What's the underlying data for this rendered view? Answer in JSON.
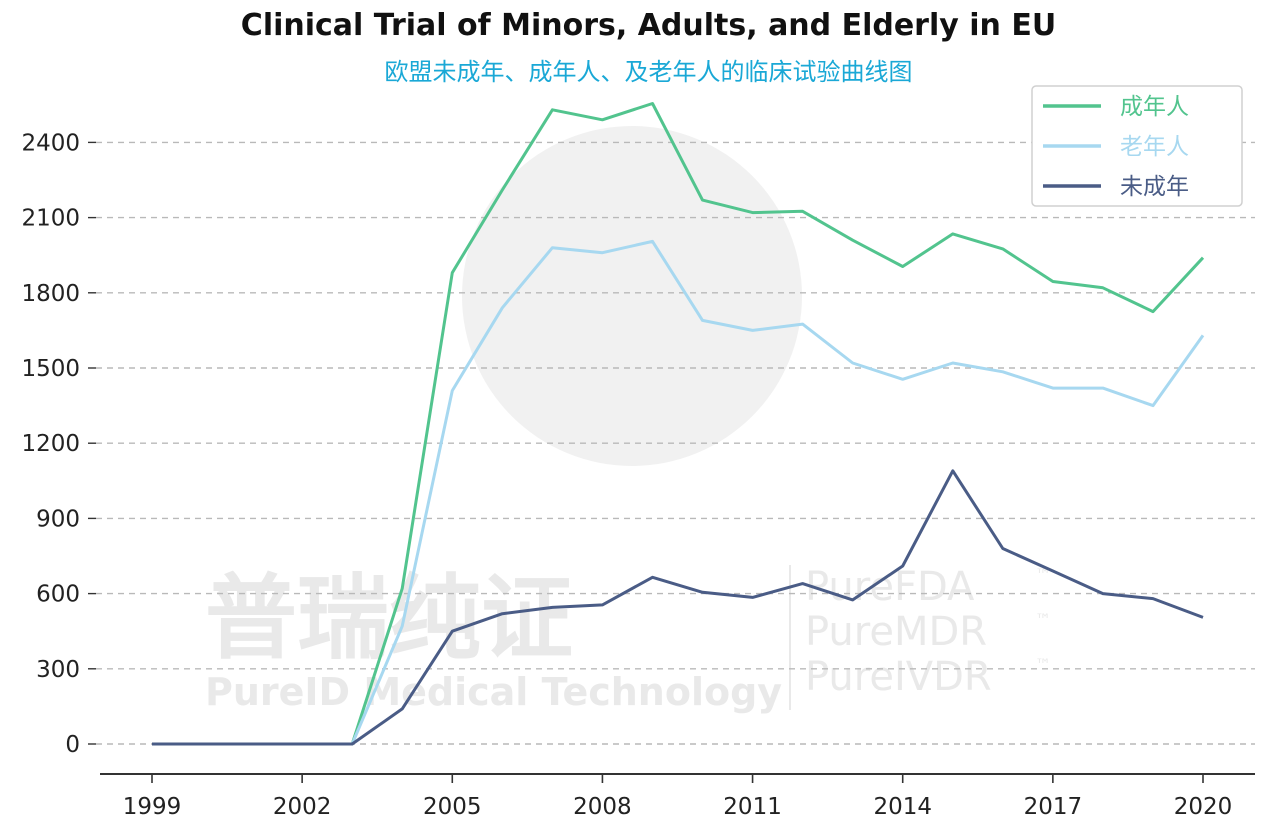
{
  "chart_data": {
    "type": "line",
    "title": "Clinical Trial of Minors, Adults, and Elderly in EU",
    "subtitle": "欧盟未成年、成年人、及老年人的临床试验曲线图",
    "xlabel": "",
    "ylabel": "",
    "x": [
      1999,
      2000,
      2001,
      2002,
      2003,
      2004,
      2005,
      2006,
      2007,
      2008,
      2009,
      2010,
      2011,
      2012,
      2013,
      2014,
      2015,
      2016,
      2017,
      2018,
      2019,
      2020
    ],
    "xlim": [
      1999,
      2020
    ],
    "ylim": [
      0,
      2550
    ],
    "xticks": [
      "1999",
      "2002",
      "2005",
      "2008",
      "2011",
      "2014",
      "2017",
      "2020"
    ],
    "yticks": [
      "0",
      "300",
      "600",
      "900",
      "1200",
      "1500",
      "1800",
      "2100",
      "2400"
    ],
    "grid": "horizontal dashed",
    "legend_position": "top-right",
    "series": [
      {
        "name": "成年人",
        "color": "#52c48e",
        "values": [
          0,
          0,
          0,
          0,
          0,
          620,
          1880,
          2210,
          2530,
          2490,
          2555,
          2170,
          2120,
          2125,
          2010,
          1905,
          2035,
          1975,
          1845,
          1820,
          1725,
          1940
        ]
      },
      {
        "name": "老年人",
        "color": "#a7d8f0",
        "values": [
          0,
          0,
          0,
          0,
          0,
          470,
          1410,
          1740,
          1980,
          1960,
          2005,
          1690,
          1650,
          1675,
          1520,
          1455,
          1520,
          1485,
          1420,
          1420,
          1350,
          1630
        ]
      },
      {
        "name": "未成年",
        "color": "#4a5c86",
        "values": [
          0,
          0,
          0,
          0,
          0,
          140,
          450,
          520,
          545,
          555,
          665,
          605,
          585,
          640,
          575,
          710,
          1090,
          780,
          690,
          600,
          580,
          505
        ]
      }
    ],
    "watermark": {
      "line1": "普瑞纯证",
      "line2": "PureID Medical Technology",
      "right": [
        "PureFDA",
        "PureMDR",
        "PureIVDR"
      ],
      "tm": "™"
    }
  }
}
